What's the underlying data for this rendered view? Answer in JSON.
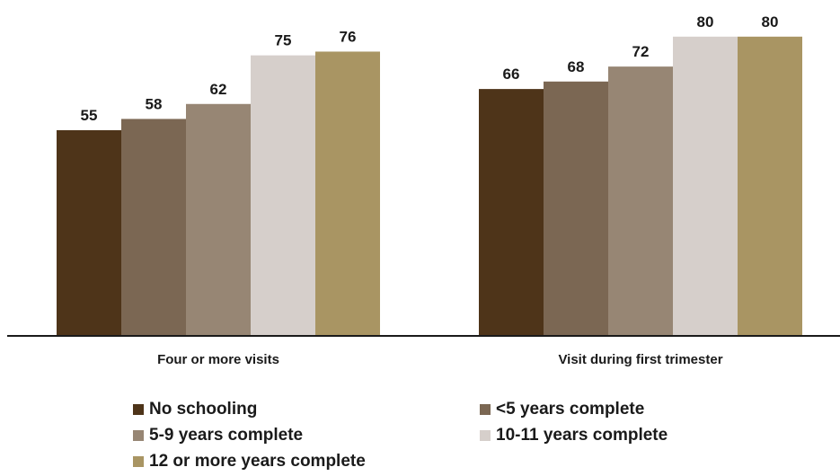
{
  "chart_data": {
    "type": "bar",
    "title": "",
    "xlabel": "",
    "ylabel": "",
    "ylim": [
      0,
      80
    ],
    "grid": false,
    "legend_placement": "bottom",
    "categories": [
      "Four or more visits",
      "Visit during first trimester"
    ],
    "series": [
      {
        "name": "No schooling",
        "color": "#4e3419",
        "values": [
          55,
          66
        ]
      },
      {
        "name": "<5 years complete",
        "color": "#7b6753",
        "values": [
          58,
          68
        ]
      },
      {
        "name": "5-9 years complete",
        "color": "#978674",
        "values": [
          62,
          72
        ]
      },
      {
        "name": "10-11 years complete",
        "color": "#d6cfcb",
        "values": [
          75,
          80
        ]
      },
      {
        "name": "12 or more years complete",
        "color": "#a99563",
        "values": [
          76,
          80
        ]
      }
    ]
  }
}
